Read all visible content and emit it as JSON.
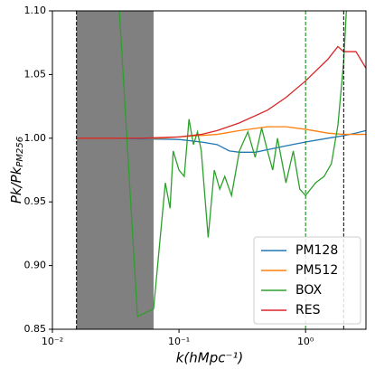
{
  "chart_data": {
    "type": "line",
    "xlabel": "k(hMpc⁻¹)",
    "ylabel": "Pk/Pk",
    "ylabel_sub": "PM256",
    "xscale": "log",
    "xlim": [
      0.01,
      3
    ],
    "ylim": [
      0.85,
      1.1
    ],
    "xticks": [
      {
        "value": 0.01,
        "label": "10⁻²"
      },
      {
        "value": 0.1,
        "label": "10⁻¹"
      },
      {
        "value": 1,
        "label": "10⁰"
      }
    ],
    "yticks": [
      0.85,
      {
        "value": 0.9,
        "label": "0.90"
      },
      0.95,
      {
        "value": 1.0,
        "label": "1.00"
      },
      1.05,
      {
        "value": 1.1,
        "label": "1.10"
      }
    ],
    "shaded_x": [
      0.0155,
      0.063
    ],
    "shade_color": "#808080",
    "vlines": [
      {
        "x": 0.0155,
        "color": "#000000"
      },
      {
        "x": 2.0,
        "color": "#000000"
      },
      {
        "x": 1.0,
        "color": "#008000"
      }
    ],
    "legend": "lower right",
    "series": [
      {
        "name": "PM128",
        "color": "#1f77b4",
        "x": [
          0.0155,
          0.03,
          0.05,
          0.1,
          0.15,
          0.2,
          0.25,
          0.3,
          0.4,
          0.5,
          0.7,
          1,
          1.5,
          2,
          2.5,
          3
        ],
        "values": [
          1.0,
          1.0,
          0.9995,
          0.999,
          0.997,
          0.995,
          0.99,
          0.989,
          0.989,
          0.991,
          0.994,
          0.997,
          1.0,
          1.002,
          1.004,
          1.006
        ]
      },
      {
        "name": "PM512",
        "color": "#ff7f0e",
        "x": [
          0.0155,
          0.03,
          0.07,
          0.1,
          0.2,
          0.3,
          0.5,
          0.7,
          1,
          1.5,
          2,
          3
        ],
        "values": [
          1.0,
          1.0,
          1.0,
          1.001,
          1.003,
          1.006,
          1.009,
          1.009,
          1.007,
          1.004,
          1.003,
          1.003
        ]
      },
      {
        "name": "BOX",
        "color": "#2ca02c",
        "x": [
          0.0338,
          0.047,
          0.063,
          0.078,
          0.085,
          0.09,
          0.1,
          0.11,
          0.12,
          0.13,
          0.14,
          0.15,
          0.17,
          0.19,
          0.21,
          0.23,
          0.26,
          0.3,
          0.35,
          0.4,
          0.45,
          0.5,
          0.55,
          0.6,
          0.7,
          0.8,
          0.9,
          1.0,
          1.2,
          1.4,
          1.6,
          1.8,
          2.0,
          2.1
        ],
        "values": [
          1.1,
          0.86,
          0.866,
          0.965,
          0.945,
          0.99,
          0.975,
          0.97,
          1.015,
          0.995,
          1.005,
          0.99,
          0.922,
          0.975,
          0.96,
          0.97,
          0.955,
          0.99,
          1.005,
          0.985,
          1.008,
          0.99,
          0.975,
          1.0,
          0.965,
          0.99,
          0.96,
          0.955,
          0.965,
          0.97,
          0.98,
          1.01,
          1.06,
          1.1
        ]
      },
      {
        "name": "RES",
        "color": "#d62728",
        "x": [
          0.0155,
          0.05,
          0.1,
          0.15,
          0.2,
          0.3,
          0.5,
          0.7,
          1,
          1.5,
          1.8,
          2,
          2.5,
          3
        ],
        "values": [
          1.0,
          1.0,
          1.001,
          1.003,
          1.006,
          1.012,
          1.022,
          1.032,
          1.045,
          1.062,
          1.072,
          1.068,
          1.068,
          1.055
        ]
      }
    ]
  }
}
